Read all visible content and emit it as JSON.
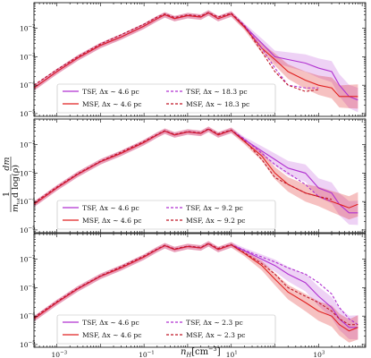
{
  "chart_data": {
    "type": "line",
    "x_scale": "log",
    "y_scale": "log",
    "xlim": [
      0.0003,
      12000
    ],
    "ylim": [
      8e-06,
      0.08
    ],
    "grid": false,
    "legend_placement": "lower-left",
    "xlabel": "n_H[cm^-3]",
    "xlabel_parts": {
      "base": "n",
      "sub": "H",
      "unit": "[cm",
      "exp": "−3",
      "close": "]"
    },
    "ylabel_parts": {
      "frac_num_d": "d",
      "frac_num_m": "m",
      "one": "1",
      "den_m": "m",
      "den_sub": "tot",
      "den_rest": "d log(ρ)"
    },
    "ytick_labels": [
      {
        "base": "10",
        "exp": "−2",
        "value": 0.01
      },
      {
        "base": "10",
        "exp": "−3",
        "value": 0.001
      },
      {
        "base": "10",
        "exp": "−4",
        "value": 0.0001
      },
      {
        "base": "10",
        "exp": "−5",
        "value": 1e-05
      }
    ],
    "xtick_labels": [
      {
        "base": "10",
        "exp": "−3",
        "value": 0.001
      },
      {
        "base": "10",
        "exp": "−1",
        "value": 0.1
      },
      {
        "base": "10",
        "exp": "1",
        "value": 10
      },
      {
        "base": "10",
        "exp": "3",
        "value": 1000
      }
    ],
    "x": [
      0.0003,
      0.001,
      0.003,
      0.01,
      0.03,
      0.1,
      0.2,
      0.3,
      0.5,
      1,
      2,
      3,
      5,
      10,
      20,
      50,
      100,
      200,
      500,
      1000,
      2000,
      3000,
      5000,
      8000
    ],
    "panels": [
      {
        "legend": [
          "TSF, Δx ∼ 4.6 pc",
          "MSF, Δx ∼ 4.6 pc",
          "TSF, Δx ∼ 18.3 pc",
          "MSF, Δx ∼ 18.3 pc"
        ],
        "series": [
          {
            "name": "TSF, Δx ∼ 4.6 pc",
            "color": "#b030d0",
            "dash": false,
            "band": true,
            "values": [
              8e-05,
              0.0003,
              0.0009,
              0.0025,
              0.005,
              0.012,
              0.022,
              0.03,
              0.022,
              0.028,
              0.025,
              0.035,
              0.022,
              0.032,
              0.012,
              0.003,
              0.001,
              0.0008,
              0.0006,
              0.0004,
              0.0003,
              0.0001,
              4e-05,
              3e-05
            ]
          },
          {
            "name": "MSF, Δx ∼ 4.6 pc",
            "color": "#e02020",
            "dash": false,
            "band": true,
            "values": [
              8e-05,
              0.0003,
              0.0009,
              0.0025,
              0.005,
              0.012,
              0.022,
              0.03,
              0.022,
              0.028,
              0.025,
              0.035,
              0.022,
              0.032,
              0.011,
              0.002,
              0.0008,
              0.0003,
              0.00015,
              0.0001,
              8e-05,
              4e-05,
              4e-05,
              4e-05
            ]
          },
          {
            "name": "TSF, Δx ∼ 18.3 pc",
            "color": "#b030d0",
            "dash": true,
            "band": false,
            "values": [
              0.0001,
              0.00035,
              0.001,
              0.0028,
              0.006,
              0.014,
              0.025,
              0.032,
              0.024,
              0.03,
              0.027,
              0.036,
              0.025,
              0.034,
              0.013,
              0.002,
              0.0004,
              0.0001,
              8e-05,
              8e-05,
              null,
              null,
              null,
              null
            ]
          },
          {
            "name": "MSF, Δx ∼ 18.3 pc",
            "color": "#c01828",
            "dash": true,
            "band": false,
            "values": [
              0.0001,
              0.00035,
              0.001,
              0.0028,
              0.006,
              0.014,
              0.025,
              0.032,
              0.024,
              0.03,
              0.027,
              0.036,
              0.025,
              0.034,
              0.012,
              0.0015,
              0.0003,
              0.0001,
              6e-05,
              7e-05,
              null,
              null,
              null,
              null
            ]
          }
        ]
      },
      {
        "legend": [
          "TSF, Δx ∼ 4.6 pc",
          "MSF, Δx ∼ 4.6 pc",
          "TSF, Δx ∼ 9.2 pc",
          "MSF, Δx ∼ 9.2 pc"
        ],
        "series": [
          {
            "name": "TSF, Δx ∼ 4.6 pc",
            "color": "#b030d0",
            "dash": false,
            "band": true,
            "values": [
              8e-05,
              0.0003,
              0.0009,
              0.0025,
              0.005,
              0.012,
              0.022,
              0.03,
              0.022,
              0.028,
              0.025,
              0.035,
              0.022,
              0.032,
              0.015,
              0.006,
              0.003,
              0.0015,
              0.001,
              0.0003,
              0.0002,
              8e-05,
              4e-05,
              4e-05
            ]
          },
          {
            "name": "MSF, Δx ∼ 4.6 pc",
            "color": "#e02020",
            "dash": false,
            "band": true,
            "values": [
              8e-05,
              0.0003,
              0.0009,
              0.0025,
              0.005,
              0.012,
              0.022,
              0.03,
              0.022,
              0.028,
              0.025,
              0.035,
              0.022,
              0.032,
              0.013,
              0.004,
              0.001,
              0.0004,
              0.0002,
              0.00015,
              0.0001,
              8e-05,
              6e-05,
              8e-05
            ]
          },
          {
            "name": "TSF, Δx ∼ 9.2 pc",
            "color": "#b030d0",
            "dash": true,
            "band": false,
            "values": [
              9e-05,
              0.00032,
              0.00095,
              0.0026,
              0.0055,
              0.013,
              0.023,
              0.031,
              0.023,
              0.029,
              0.026,
              0.036,
              0.024,
              0.033,
              0.016,
              0.005,
              0.002,
              0.001,
              0.0004,
              0.00015,
              0.0001,
              null,
              null,
              null
            ]
          },
          {
            "name": "MSF, Δx ∼ 9.2 pc",
            "color": "#c01828",
            "dash": true,
            "band": false,
            "values": [
              9e-05,
              0.00032,
              0.00095,
              0.0026,
              0.0055,
              0.013,
              0.023,
              0.031,
              0.023,
              0.029,
              0.026,
              0.036,
              0.024,
              0.033,
              0.014,
              0.003,
              0.0007,
              0.0004,
              0.0002,
              0.00015,
              0.00012,
              null,
              null,
              null
            ]
          }
        ]
      },
      {
        "legend": [
          "TSF, Δx ∼ 4.6 pc",
          "MSF, Δx ∼ 4.6 pc",
          "TSF, Δx ∼ 2.3 pc",
          "MSF, Δx ∼ 2.3 pc"
        ],
        "series": [
          {
            "name": "TSF, Δx ∼ 4.6 pc",
            "color": "#b030d0",
            "dash": false,
            "band": true,
            "values": [
              8e-05,
              0.0003,
              0.0009,
              0.0025,
              0.005,
              0.012,
              0.022,
              0.03,
              0.022,
              0.028,
              0.025,
              0.035,
              0.022,
              0.032,
              0.02,
              0.01,
              0.006,
              0.003,
              0.0015,
              0.0005,
              0.0002,
              8e-05,
              4e-05,
              4e-05
            ]
          },
          {
            "name": "MSF, Δx ∼ 4.6 pc",
            "color": "#e02020",
            "dash": false,
            "band": true,
            "values": [
              8e-05,
              0.0003,
              0.0009,
              0.0025,
              0.005,
              0.012,
              0.022,
              0.03,
              0.022,
              0.028,
              0.025,
              0.035,
              0.022,
              0.032,
              0.016,
              0.006,
              0.002,
              0.0007,
              0.0003,
              0.00015,
              0.0001,
              5e-05,
              3e-05,
              4e-05
            ]
          },
          {
            "name": "TSF, Δx ∼ 2.3 pc",
            "color": "#b030d0",
            "dash": true,
            "band": false,
            "values": [
              9e-05,
              0.00032,
              0.00095,
              0.0026,
              0.0055,
              0.013,
              0.023,
              0.031,
              0.023,
              0.029,
              0.026,
              0.036,
              0.024,
              0.033,
              0.021,
              0.012,
              0.008,
              0.005,
              0.003,
              0.0015,
              0.0006,
              0.0002,
              8e-05,
              5e-05
            ]
          },
          {
            "name": "MSF, Δx ∼ 2.3 pc",
            "color": "#c01828",
            "dash": true,
            "band": false,
            "values": [
              9e-05,
              0.00032,
              0.00095,
              0.0026,
              0.0055,
              0.013,
              0.023,
              0.031,
              0.023,
              0.029,
              0.026,
              0.036,
              0.024,
              0.033,
              0.017,
              0.007,
              0.003,
              0.001,
              0.0005,
              0.0003,
              0.00015,
              8e-05,
              5e-05,
              5e-05
            ]
          }
        ]
      }
    ]
  }
}
